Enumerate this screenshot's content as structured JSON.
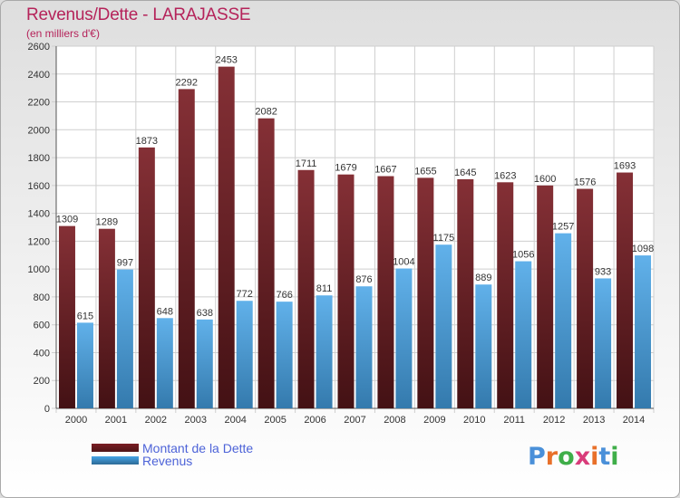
{
  "header": {
    "title": "Revenus/Dette - LARAJASSE",
    "subtitle": "(en milliers d'€)"
  },
  "colors": {
    "dette": "#7a1e24",
    "revenus": "#45a3e6",
    "title": "#b5235a",
    "legend_text": "#4d63d8"
  },
  "legend": {
    "dette_label": "Montant de la Dette",
    "revenus_label": "Revenus"
  },
  "logo": {
    "text": "Proxiti",
    "letter_colors": [
      "#4a90d9",
      "#e8702a",
      "#3fae49",
      "#d93c7a",
      "#e8702a",
      "#4a90d9",
      "#3fae49"
    ]
  },
  "chart_data": {
    "type": "bar",
    "title": "Revenus/Dette - LARAJASSE",
    "subtitle": "(en milliers d'€)",
    "categories": [
      "2000",
      "2001",
      "2002",
      "2003",
      "2004",
      "2005",
      "2006",
      "2007",
      "2008",
      "2009",
      "2010",
      "2011",
      "2012",
      "2013",
      "2014"
    ],
    "series": [
      {
        "name": "Montant de la Dette",
        "color": "#7a1e24",
        "values": [
          1309,
          1289,
          1873,
          2292,
          2453,
          2082,
          1711,
          1679,
          1667,
          1655,
          1645,
          1623,
          1600,
          1576,
          1693
        ]
      },
      {
        "name": "Revenus",
        "color": "#45a3e6",
        "values": [
          615,
          997,
          648,
          638,
          772,
          766,
          811,
          876,
          1004,
          1175,
          889,
          1056,
          1257,
          933,
          1098
        ]
      }
    ],
    "ylim": [
      0,
      2600
    ],
    "yticks": [
      0,
      200,
      400,
      600,
      800,
      1000,
      1200,
      1400,
      1600,
      1800,
      2000,
      2200,
      2400,
      2600
    ],
    "grid": true,
    "legend_position": "bottom-left"
  }
}
